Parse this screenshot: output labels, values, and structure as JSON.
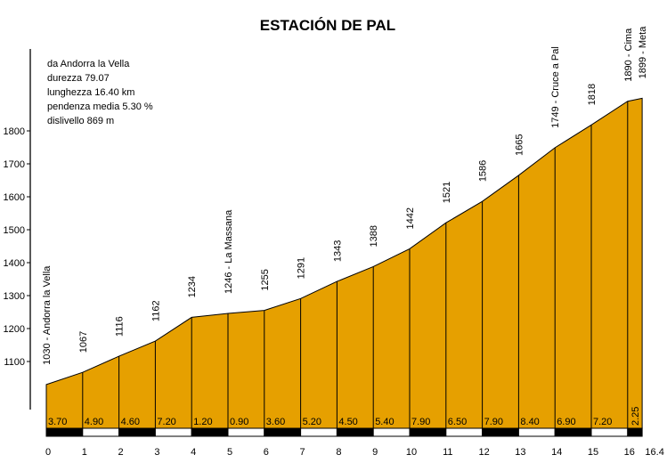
{
  "chart_data": {
    "type": "area",
    "title": "ESTACIÓN DE PAL",
    "info": [
      "da Andorra la Vella",
      "durezza 79.07",
      "lunghezza 16.40 km",
      "pendenza media 5.30 %",
      "dislivello 869 m"
    ],
    "x": [
      0,
      1,
      2,
      3,
      4,
      5,
      6,
      7,
      8,
      9,
      10,
      11,
      12,
      13,
      14,
      15,
      16,
      16.4
    ],
    "y": [
      1030,
      1067,
      1116,
      1162,
      1234,
      1246,
      1255,
      1291,
      1343,
      1388,
      1442,
      1521,
      1586,
      1665,
      1749,
      1818,
      1890,
      1899
    ],
    "point_labels": [
      "1030 - Andorra la Vella",
      "1067",
      "1116",
      "1162",
      "1234",
      "1246 - La Massana",
      "1255",
      "1291",
      "1343",
      "1388",
      "1442",
      "1521",
      "1586",
      "1665",
      "1749 - Cruce a Pal",
      "1818",
      "1890 - Cima",
      "1899 - Meta"
    ],
    "segment_gradients": [
      "3.70",
      "4.90",
      "4.60",
      "7.20",
      "1.20",
      "0.90",
      "3.60",
      "5.20",
      "4.50",
      "5.40",
      "7.90",
      "6.50",
      "7.90",
      "8.40",
      "6.90",
      "7.20",
      "2.25"
    ],
    "x_ticks": [
      "0",
      "1",
      "2",
      "3",
      "4",
      "5",
      "6",
      "7",
      "8",
      "9",
      "10",
      "11",
      "12",
      "13",
      "14",
      "15",
      "16",
      "16.4"
    ],
    "y_ticks": [
      1100,
      1200,
      1300,
      1400,
      1500,
      1600,
      1700,
      1800
    ],
    "xlim": [
      0,
      16.4
    ],
    "ylim_base": 1000,
    "fill_color": "#e6a000"
  }
}
